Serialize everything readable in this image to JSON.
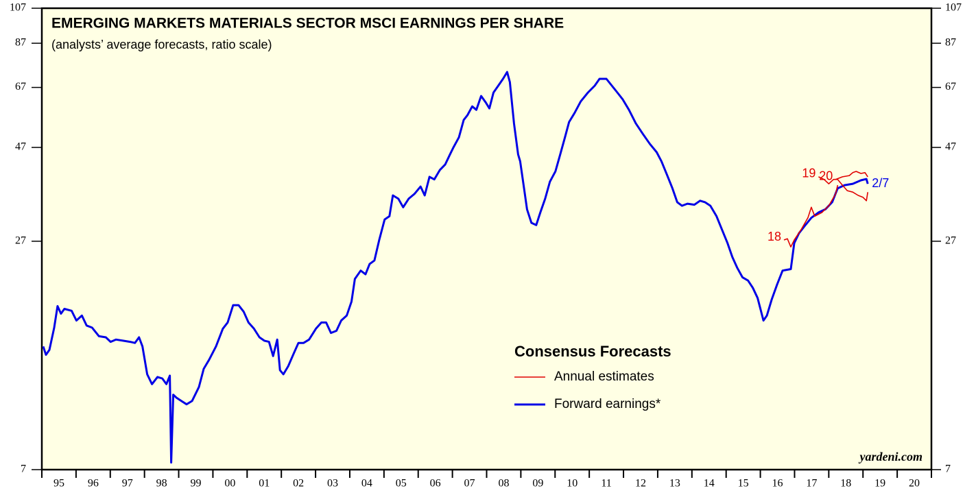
{
  "chart_data": {
    "type": "line",
    "title": "EMERGING MARKETS MATERIALS SECTOR MSCI EARNINGS PER SHARE",
    "subtitle": "(analysts’ average forecasts, ratio scale)",
    "legend_title": "Consensus Forecasts",
    "watermark": "yardeni.com",
    "ylog": true,
    "ylim": [
      7,
      107
    ],
    "yticks": [
      7,
      27,
      47,
      67,
      87,
      107
    ],
    "xlim": [
      1995,
      2021
    ],
    "xtick_marks": [
      1995,
      1996,
      1997,
      1998,
      1999,
      2000,
      2001,
      2002,
      2003,
      2004,
      2005,
      2006,
      2007,
      2008,
      2009,
      2010,
      2011,
      2012,
      2013,
      2014,
      2015,
      2016,
      2017,
      2018,
      2019,
      2020,
      2021
    ],
    "xticks": [
      {
        "value": 1995.5,
        "label": "95"
      },
      {
        "value": 1996.5,
        "label": "96"
      },
      {
        "value": 1997.5,
        "label": "97"
      },
      {
        "value": 1998.5,
        "label": "98"
      },
      {
        "value": 1999.5,
        "label": "99"
      },
      {
        "value": 2000.5,
        "label": "00"
      },
      {
        "value": 2001.5,
        "label": "01"
      },
      {
        "value": 2002.5,
        "label": "02"
      },
      {
        "value": 2003.5,
        "label": "03"
      },
      {
        "value": 2004.5,
        "label": "04"
      },
      {
        "value": 2005.5,
        "label": "05"
      },
      {
        "value": 2006.5,
        "label": "06"
      },
      {
        "value": 2007.5,
        "label": "07"
      },
      {
        "value": 2008.5,
        "label": "08"
      },
      {
        "value": 2009.5,
        "label": "09"
      },
      {
        "value": 2010.5,
        "label": "10"
      },
      {
        "value": 2011.5,
        "label": "11"
      },
      {
        "value": 2012.5,
        "label": "12"
      },
      {
        "value": 2013.5,
        "label": "13"
      },
      {
        "value": 2014.5,
        "label": "14"
      },
      {
        "value": 2015.5,
        "label": "15"
      },
      {
        "value": 2016.5,
        "label": "16"
      },
      {
        "value": 2017.5,
        "label": "17"
      },
      {
        "value": 2018.5,
        "label": "18"
      },
      {
        "value": 2019.5,
        "label": "19"
      },
      {
        "value": 2020.5,
        "label": "20"
      }
    ],
    "series": [
      {
        "name": "Annual estimates",
        "color": "#e00000",
        "lines": [
          {
            "label": "18",
            "x": [
              2016.69,
              2016.79,
              2016.89,
              2016.99,
              2017.19,
              2017.39,
              2017.49,
              2017.59,
              2017.8,
              2018.0,
              2018.2,
              2018.26
            ],
            "values": [
              27.2,
              27.4,
              26.1,
              27.2,
              28.9,
              31.0,
              33.0,
              31.3,
              32.0,
              33.3,
              35.7,
              37.6
            ]
          },
          {
            "label": "19",
            "x": [
              2017.7,
              2017.86,
              2018.0,
              2018.14,
              2018.26,
              2018.4,
              2018.54,
              2018.7,
              2018.86,
              2019.0,
              2019.1,
              2019.14
            ],
            "values": [
              39.5,
              38.9,
              37.9,
              38.9,
              38.9,
              37.6,
              36.4,
              36.1,
              35.4,
              35.0,
              34.3,
              36.1
            ]
          },
          {
            "label": "20",
            "x": [
              2018.2,
              2018.4,
              2018.6,
              2018.7,
              2018.8,
              2018.94,
              2019.06,
              2019.14
            ],
            "values": [
              38.9,
              39.5,
              39.8,
              40.5,
              40.8,
              40.3,
              40.5,
              39.5
            ]
          }
        ]
      },
      {
        "name": "Forward earnings*",
        "color": "#0000e6",
        "label": "2/7",
        "x": [
          1995.04,
          1995.12,
          1995.22,
          1995.36,
          1995.46,
          1995.56,
          1995.66,
          1995.87,
          1996.01,
          1996.17,
          1996.31,
          1996.47,
          1996.67,
          1996.87,
          1997.01,
          1997.17,
          1997.37,
          1997.58,
          1997.72,
          1997.84,
          1997.94,
          1998.08,
          1998.22,
          1998.38,
          1998.52,
          1998.64,
          1998.74,
          1998.78,
          1998.84,
          1998.94,
          1999.08,
          1999.23,
          1999.39,
          1999.59,
          1999.73,
          1999.89,
          2000.09,
          2000.29,
          2000.43,
          2000.59,
          2000.75,
          2000.9,
          2001.04,
          2001.2,
          2001.36,
          2001.5,
          2001.64,
          2001.76,
          2001.88,
          2001.96,
          2002.06,
          2002.2,
          2002.36,
          2002.5,
          2002.65,
          2002.81,
          2003.01,
          2003.17,
          2003.31,
          2003.45,
          2003.61,
          2003.75,
          2003.91,
          2004.05,
          2004.15,
          2004.32,
          2004.46,
          2004.58,
          2004.72,
          2004.86,
          2005.02,
          2005.16,
          2005.26,
          2005.42,
          2005.56,
          2005.72,
          2005.89,
          2006.07,
          2006.19,
          2006.33,
          2006.47,
          2006.63,
          2006.79,
          2006.93,
          2007.03,
          2007.19,
          2007.33,
          2007.44,
          2007.58,
          2007.7,
          2007.84,
          2007.98,
          2008.08,
          2008.2,
          2008.34,
          2008.48,
          2008.6,
          2008.68,
          2008.8,
          2008.92,
          2008.98,
          2009.08,
          2009.18,
          2009.31,
          2009.45,
          2009.57,
          2009.71,
          2009.85,
          2010.01,
          2010.15,
          2010.29,
          2010.41,
          2010.57,
          2010.75,
          2010.96,
          2011.16,
          2011.3,
          2011.5,
          2011.66,
          2011.82,
          2011.98,
          2012.16,
          2012.36,
          2012.56,
          2012.77,
          2012.97,
          2013.11,
          2013.27,
          2013.43,
          2013.57,
          2013.71,
          2013.87,
          2014.07,
          2014.24,
          2014.38,
          2014.54,
          2014.72,
          2014.88,
          2015.04,
          2015.18,
          2015.32,
          2015.48,
          2015.64,
          2015.78,
          2015.92,
          2016.09,
          2016.19,
          2016.33,
          2016.49,
          2016.65,
          2016.89,
          2016.99,
          2017.13,
          2017.29,
          2017.49,
          2017.7,
          2017.9,
          2018.1,
          2018.26,
          2018.46,
          2018.7,
          2018.94,
          2019.1,
          2019.14
        ],
        "values": [
          14.5,
          13.8,
          14.2,
          16.2,
          18.4,
          17.6,
          18.1,
          17.9,
          16.9,
          17.4,
          16.4,
          16.2,
          15.4,
          15.3,
          14.9,
          15.1,
          15.0,
          14.9,
          14.8,
          15.3,
          14.5,
          12.3,
          11.6,
          12.1,
          12.0,
          11.6,
          12.2,
          7.3,
          10.9,
          10.7,
          10.5,
          10.3,
          10.5,
          11.4,
          12.7,
          13.4,
          14.5,
          16.1,
          16.7,
          18.5,
          18.5,
          17.8,
          16.7,
          16.1,
          15.3,
          15.0,
          14.9,
          13.7,
          15.1,
          12.6,
          12.3,
          12.9,
          13.9,
          14.8,
          14.8,
          15.1,
          16.1,
          16.7,
          16.7,
          15.7,
          15.9,
          16.9,
          17.4,
          18.9,
          21.6,
          22.7,
          22.2,
          23.6,
          24.1,
          27.2,
          30.7,
          31.3,
          35.4,
          34.7,
          33.0,
          34.7,
          35.7,
          37.3,
          35.4,
          39.5,
          38.9,
          41.1,
          42.5,
          45.1,
          47.0,
          49.9,
          55.3,
          56.9,
          59.9,
          58.7,
          63.7,
          61.2,
          59.2,
          65.0,
          67.7,
          70.5,
          73.4,
          69.1,
          54.2,
          45.1,
          43.3,
          37.6,
          32.6,
          30.1,
          29.7,
          32.0,
          34.7,
          38.4,
          40.8,
          45.1,
          49.9,
          54.6,
          57.6,
          61.7,
          65.0,
          67.7,
          70.5,
          70.5,
          67.7,
          65.0,
          62.4,
          58.7,
          54.2,
          51.0,
          48.0,
          45.7,
          43.3,
          40.0,
          36.9,
          34.0,
          33.3,
          33.7,
          33.5,
          34.3,
          34.0,
          33.3,
          31.3,
          28.9,
          26.7,
          24.6,
          23.1,
          21.8,
          21.4,
          20.5,
          19.3,
          16.9,
          17.4,
          19.1,
          20.9,
          22.7,
          22.9,
          26.7,
          28.3,
          29.5,
          31.0,
          32.0,
          32.6,
          34.0,
          36.9,
          37.6,
          37.9,
          38.7,
          39.0,
          37.9
        ]
      }
    ]
  }
}
